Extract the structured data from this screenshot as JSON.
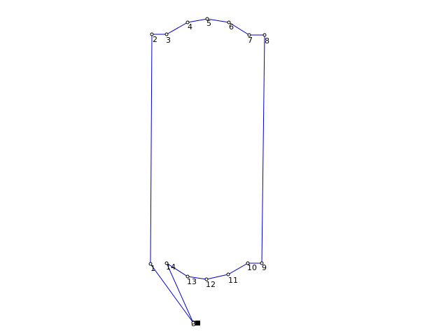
{
  "colors": {
    "background": "#ffffff",
    "outline": "#0000cc",
    "marker": "#000000",
    "label": "#000000"
  },
  "origin": {
    "label": "8"
  },
  "vertices": [
    {
      "id": 1,
      "label": "1"
    },
    {
      "id": 2,
      "label": "2"
    },
    {
      "id": 3,
      "label": "3"
    },
    {
      "id": 4,
      "label": "4"
    },
    {
      "id": 5,
      "label": "5"
    },
    {
      "id": 6,
      "label": "6"
    },
    {
      "id": 7,
      "label": "7"
    },
    {
      "id": 8,
      "label": "8"
    },
    {
      "id": 9,
      "label": "9"
    },
    {
      "id": 10,
      "label": "10"
    },
    {
      "id": 11,
      "label": "11"
    },
    {
      "id": 12,
      "label": "12"
    },
    {
      "id": 13,
      "label": "13"
    },
    {
      "id": 14,
      "label": "14"
    }
  ]
}
